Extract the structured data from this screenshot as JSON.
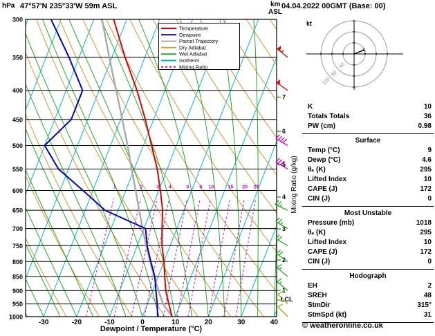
{
  "copyright": "© weatheronline.co.uk",
  "chart_data": {
    "type": "skewt-log-p",
    "title_left": "47°57'N 235°33'W 59m ASL",
    "title_right": "04.04.2022 00GMT (Base: 00)",
    "ylabel_left": "hPa",
    "km_label": "km",
    "asl_label": "ASL",
    "xlabel": "Dewpoint / Temperature (°C)",
    "mixing_ratio_label": "Mixing Ratio (g/kg)",
    "lcl_label": "LCL",
    "pressure_range_hpa": [
      300,
      1000
    ],
    "temp_range_c": [
      -35,
      40
    ],
    "pressure_axis_hpa": [
      300,
      350,
      400,
      450,
      500,
      550,
      600,
      650,
      700,
      750,
      800,
      850,
      900,
      950,
      1000
    ],
    "temp_axis_c": [
      -30,
      -20,
      -10,
      0,
      10,
      20,
      30,
      40
    ],
    "mixing_ratio_values": [
      1,
      2,
      3,
      4,
      6,
      8,
      10,
      15,
      20,
      25
    ],
    "km_ticks": [
      1,
      2,
      3,
      4,
      5,
      6,
      7
    ],
    "lcl_pressure_hpa": 935,
    "colors": {
      "temperature": "#dd0000",
      "dewpoint": "#0000bb",
      "parcel": "#aaaaaa",
      "dry_adiabat": "#cc9933",
      "wet_adiabat": "#22aa22",
      "isotherm": "#00bbbb",
      "mixing_ratio": "#cc00cc",
      "grid": "#000000",
      "km_tick": "#22aa22"
    },
    "legend": [
      {
        "label": "Temperature",
        "color": "#dd0000",
        "dash": ""
      },
      {
        "label": "Dewpoint",
        "color": "#0000bb",
        "dash": ""
      },
      {
        "label": "Parcel Trajectory",
        "color": "#aaaaaa",
        "dash": ""
      },
      {
        "label": "Dry Adiabat",
        "color": "#cc9933",
        "dash": ""
      },
      {
        "label": "Wet Adiabat",
        "color": "#22aa22",
        "dash": ""
      },
      {
        "label": "Isotherm",
        "color": "#00bbbb",
        "dash": ""
      },
      {
        "label": "Mixing Ratio",
        "color": "#cc00cc",
        "dash": "3 3"
      }
    ],
    "temperature_profile": [
      [
        1000,
        9
      ],
      [
        950,
        6.5
      ],
      [
        900,
        4
      ],
      [
        850,
        2
      ],
      [
        800,
        0
      ],
      [
        750,
        -2.5
      ],
      [
        700,
        -4.5
      ],
      [
        650,
        -6.5
      ],
      [
        600,
        -9.5
      ],
      [
        550,
        -13
      ],
      [
        500,
        -17.5
      ],
      [
        450,
        -22.5
      ],
      [
        400,
        -28.5
      ],
      [
        350,
        -36
      ],
      [
        300,
        -44
      ]
    ],
    "dewpoint_profile": [
      [
        1000,
        4.6
      ],
      [
        950,
        3
      ],
      [
        900,
        1
      ],
      [
        850,
        -1
      ],
      [
        800,
        -4
      ],
      [
        750,
        -7
      ],
      [
        700,
        -9.5
      ],
      [
        650,
        -24
      ],
      [
        600,
        -33
      ],
      [
        550,
        -43
      ],
      [
        500,
        -50
      ],
      [
        450,
        -45
      ],
      [
        400,
        -45
      ],
      [
        350,
        -53
      ],
      [
        300,
        -63
      ]
    ],
    "parcel_profile": [
      [
        1000,
        9
      ],
      [
        950,
        4.8
      ],
      [
        900,
        1.8
      ],
      [
        850,
        -1.2
      ],
      [
        800,
        -4.2
      ],
      [
        750,
        -7.3
      ],
      [
        700,
        -10.4
      ],
      [
        650,
        -13.6
      ],
      [
        600,
        -17
      ],
      [
        550,
        -20.8
      ],
      [
        500,
        -24.8
      ],
      [
        450,
        -29.5
      ],
      [
        400,
        -34.8
      ],
      [
        350,
        -40.8
      ],
      [
        300,
        -47.5
      ]
    ],
    "wind_barbs": [
      {
        "pressure": 350,
        "speed_kt": 55,
        "dir_deg": 310,
        "color": "#dd0000"
      },
      {
        "pressure": 400,
        "speed_kt": 50,
        "dir_deg": 305,
        "color": "#dd0000"
      },
      {
        "pressure": 500,
        "speed_kt": 40,
        "dir_deg": 300,
        "color": "#cc00cc"
      },
      {
        "pressure": 550,
        "speed_kt": 35,
        "dir_deg": 300,
        "color": "#cc00cc"
      },
      {
        "pressure": 650,
        "speed_kt": 25,
        "dir_deg": 295,
        "color": "#22aa22"
      },
      {
        "pressure": 700,
        "speed_kt": 25,
        "dir_deg": 300,
        "color": "#22aa22"
      },
      {
        "pressure": 750,
        "speed_kt": 20,
        "dir_deg": 300,
        "color": "#22aa22"
      },
      {
        "pressure": 800,
        "speed_kt": 20,
        "dir_deg": 305,
        "color": "#22aa22"
      },
      {
        "pressure": 850,
        "speed_kt": 15,
        "dir_deg": 310,
        "color": "#22aa22"
      },
      {
        "pressure": 900,
        "speed_kt": 15,
        "dir_deg": 310,
        "color": "#22aa22"
      },
      {
        "pressure": 950,
        "speed_kt": 10,
        "dir_deg": 315,
        "color": "#99aa00"
      },
      {
        "pressure": 1000,
        "speed_kt": 10,
        "dir_deg": 315,
        "color": "#99aa00"
      }
    ]
  },
  "hodograph": {
    "unit_label": "kt",
    "rings_kt": [
      40,
      80,
      120
    ],
    "trace_kt": [
      [
        0,
        0
      ],
      [
        10,
        -4
      ],
      [
        20,
        -8
      ],
      [
        31,
        -12
      ]
    ]
  },
  "panel": {
    "stats": [
      {
        "label": "K",
        "value": "10"
      },
      {
        "label": "Totals Totals",
        "value": "36"
      },
      {
        "label": "PW (cm)",
        "value": "0.98"
      }
    ],
    "sections": [
      {
        "title": "Surface",
        "rows": [
          [
            "Temp (°C)",
            "9"
          ],
          [
            "Dewp (°C)",
            "4.6"
          ],
          [
            "θₑ (K)",
            "295"
          ],
          [
            "Lifted Index",
            "10"
          ],
          [
            "CAPE (J)",
            "172"
          ],
          [
            "CIN (J)",
            "0"
          ]
        ]
      },
      {
        "title": "Most Unstable",
        "rows": [
          [
            "Pressure (mb)",
            "1018"
          ],
          [
            "θₑ (K)",
            "295"
          ],
          [
            "Lifted Index",
            "10"
          ],
          [
            "CAPE (J)",
            "172"
          ],
          [
            "CIN (J)",
            "0"
          ]
        ]
      },
      {
        "title": "Hodograph",
        "rows": [
          [
            "EH",
            "2"
          ],
          [
            "SREH",
            "48"
          ],
          [
            "StmDir",
            "315°"
          ],
          [
            "StmSpd (kt)",
            "31"
          ]
        ]
      }
    ]
  }
}
